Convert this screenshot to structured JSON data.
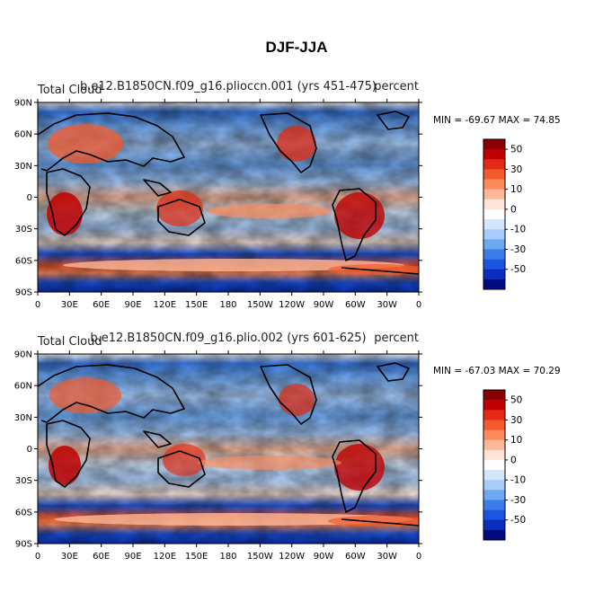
{
  "figure": {
    "title": "DJF-JJA"
  },
  "panels": [
    {
      "run": "b.e12.B1850CN.f09_g16.pliocсn.001 (yrs 451-475)",
      "variable": "Total Cloud",
      "units": "percent",
      "min_max": "MIN = -69.67 MAX =  74.85"
    },
    {
      "run": "b.e12.B1850CN.f09_g16.plio.002 (yrs 601-625)",
      "variable": "Total Cloud",
      "units": "percent",
      "min_max": "MIN = -67.03 MAX =  70.29"
    }
  ],
  "axes": {
    "lat_labels": [
      "90N",
      "60N",
      "30N",
      "0",
      "30S",
      "60S",
      "90S"
    ],
    "lon_labels": [
      "0",
      "30E",
      "60E",
      "90E",
      "120E",
      "150E",
      "180",
      "150W",
      "120W",
      "90W",
      "60W",
      "30W",
      "0"
    ]
  },
  "colorbar": {
    "labels": [
      "50",
      "30",
      "10",
      "0",
      "-10",
      "-30",
      "-50"
    ],
    "colors": [
      "#8b0000",
      "#c00000",
      "#e32a12",
      "#f55a2e",
      "#fc8b5c",
      "#fcb99a",
      "#fde4d6",
      "#ffffff",
      "#d4e6fb",
      "#a9cdfa",
      "#6da8f2",
      "#3b7ce8",
      "#1c55e0",
      "#0a2fbf",
      "#000c80"
    ]
  },
  "chart_data": [
    {
      "type": "heatmap",
      "title": "b.e12.B1850CN.f09_g16.pliocсn.001 (yrs 451-475)",
      "units": "percent",
      "min": -69.67,
      "max": 74.85,
      "lat_range": [
        -90,
        90
      ],
      "lon_range": [
        0,
        360
      ],
      "levels": [
        -60,
        -50,
        -40,
        -30,
        -20,
        -10,
        -5,
        0,
        5,
        10,
        20,
        30,
        40,
        50,
        60
      ]
    },
    {
      "type": "heatmap",
      "title": "b.e12.B1850CN.f09_g16.plio.002 (yrs 601-625)",
      "units": "percent",
      "min": -67.03,
      "max": 70.29,
      "lat_range": [
        -90,
        90
      ],
      "lon_range": [
        0,
        360
      ],
      "levels": [
        -60,
        -50,
        -40,
        -30,
        -20,
        -10,
        -5,
        0,
        5,
        10,
        20,
        30,
        40,
        50,
        60
      ]
    }
  ]
}
